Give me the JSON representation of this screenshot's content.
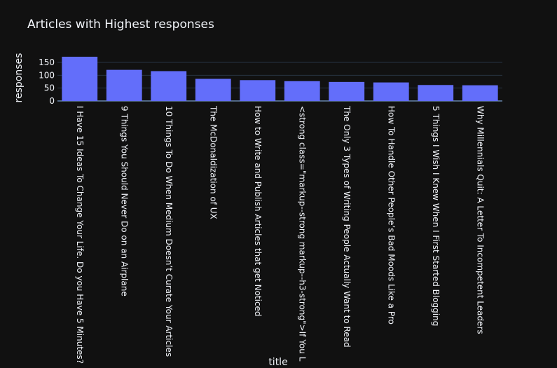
{
  "chart_data": {
    "type": "bar",
    "title": "Articles with Highest responses",
    "xlabel": "title",
    "ylabel": "responses",
    "categories": [
      "I Have 15 Ideas To Change Your Life. Do you Have 5 Minutes?",
      "9 Things You Should Never Do on an Airplane",
      "10 Things To Do When Medium Doesn’t Curate Your Articles",
      "The McDonaldization of UX",
      "How to Write and Publish Articles that get Noticed",
      "<strong class=\"markup--strong markup--h3-strong\">If You L",
      "The Only 3 Types of Writing People Actually Want to Read",
      "How To Handle Other People’s Bad Moods Like a Pro",
      "5 Things I Wish I Knew When I First Started Blogging",
      "Why Millennials Quit: A Letter To Incompetent Leaders"
    ],
    "values": [
      172,
      121,
      116,
      86,
      81,
      77,
      74,
      72,
      62,
      61
    ],
    "yticks": [
      "0",
      "50",
      "100",
      "150"
    ],
    "ylim": [
      0,
      180
    ],
    "grid": true,
    "colors": {
      "background": "#111111",
      "bar": "#636efa",
      "grid": "#283442",
      "text": "#f2f5fa"
    }
  }
}
